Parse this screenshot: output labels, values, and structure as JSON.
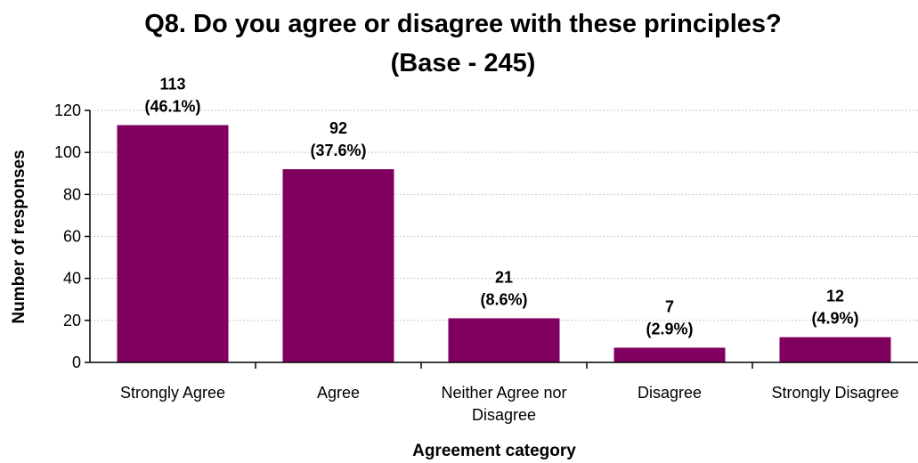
{
  "chart_data": {
    "type": "bar",
    "title_lines": [
      "Q8. Do you agree or disagree with these principles?",
      "(Base - 245)"
    ],
    "xlabel": "Agreement category",
    "ylabel": "Number of responses",
    "ylim": [
      0,
      120
    ],
    "yticks": [
      0,
      20,
      40,
      60,
      80,
      100,
      120
    ],
    "grid": true,
    "bar_color": "#800060",
    "categories": [
      [
        "Strongly Agree"
      ],
      [
        "Agree"
      ],
      [
        "Neither Agree nor",
        "Disagree"
      ],
      [
        "Disagree"
      ],
      [
        "Strongly Disagree"
      ]
    ],
    "values": [
      113,
      92,
      21,
      7,
      12
    ],
    "percent_labels": [
      "(46.1%)",
      "(37.6%)",
      "(8.6%)",
      "(2.9%)",
      "(4.9%)"
    ]
  }
}
